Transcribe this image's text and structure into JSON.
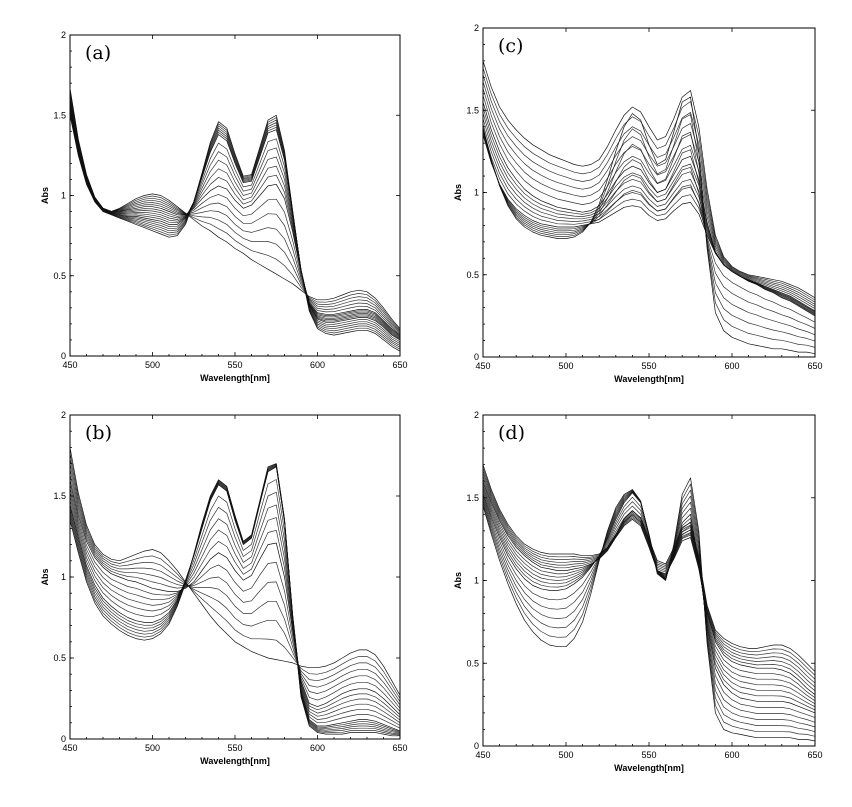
{
  "chart_data": [
    {
      "type": "line",
      "panel_label": "(a)",
      "xlabel": "Wavelength[nm]",
      "ylabel": "Abs",
      "xlim": [
        450,
        650
      ],
      "ylim": [
        0,
        2
      ],
      "xticks": [
        450,
        500,
        550,
        600,
        650
      ],
      "yticks": [
        0,
        0.5,
        1,
        1.5,
        2
      ],
      "grid": false,
      "x": [
        450,
        455,
        460,
        465,
        470,
        475,
        480,
        485,
        490,
        495,
        500,
        505,
        510,
        515,
        520,
        525,
        530,
        535,
        540,
        545,
        550,
        555,
        560,
        565,
        570,
        575,
        580,
        585,
        590,
        595,
        600,
        605,
        610,
        615,
        620,
        625,
        630,
        635,
        640,
        645,
        650
      ],
      "series": [
        {
          "values": [
            1.67,
            1.35,
            1.13,
            0.99,
            0.92,
            0.9,
            0.92,
            0.95,
            0.98,
            1.0,
            1.01,
            1.0,
            0.97,
            0.93,
            0.89,
            0.85,
            0.81,
            0.78,
            0.74,
            0.71,
            0.67,
            0.64,
            0.6,
            0.57,
            0.54,
            0.51,
            0.48,
            0.45,
            0.41,
            0.37,
            0.35,
            0.35,
            0.36,
            0.38,
            0.4,
            0.41,
            0.4,
            0.36,
            0.3,
            0.23,
            0.17
          ]
        },
        {
          "values": [
            1.6,
            1.31,
            1.11,
            0.98,
            0.92,
            0.9,
            0.9,
            0.91,
            0.92,
            0.93,
            0.93,
            0.92,
            0.9,
            0.88,
            0.88,
            0.92,
            0.98,
            1.03,
            1.06,
            1.04,
            0.97,
            0.92,
            0.94,
            1.0,
            1.06,
            1.07,
            0.98,
            0.77,
            0.52,
            0.33,
            0.27,
            0.26,
            0.26,
            0.27,
            0.28,
            0.29,
            0.29,
            0.27,
            0.22,
            0.17,
            0.13
          ]
        },
        {
          "values": [
            1.55,
            1.28,
            1.09,
            0.97,
            0.91,
            0.89,
            0.88,
            0.87,
            0.87,
            0.86,
            0.85,
            0.84,
            0.82,
            0.82,
            0.86,
            0.96,
            1.11,
            1.27,
            1.38,
            1.34,
            1.2,
            1.08,
            1.09,
            1.24,
            1.39,
            1.41,
            1.22,
            0.88,
            0.54,
            0.31,
            0.23,
            0.21,
            0.21,
            0.22,
            0.23,
            0.24,
            0.24,
            0.22,
            0.18,
            0.13,
            0.1
          ]
        },
        {
          "values": [
            1.5,
            1.25,
            1.07,
            0.96,
            0.9,
            0.88,
            0.86,
            0.84,
            0.82,
            0.8,
            0.78,
            0.76,
            0.74,
            0.75,
            0.82,
            0.96,
            1.14,
            1.33,
            1.46,
            1.42,
            1.26,
            1.12,
            1.13,
            1.3,
            1.47,
            1.5,
            1.28,
            0.9,
            0.53,
            0.28,
            0.17,
            0.14,
            0.13,
            0.14,
            0.15,
            0.16,
            0.16,
            0.14,
            0.1,
            0.06,
            0.03
          ]
        }
      ]
    },
    {
      "type": "line",
      "panel_label": "(b)",
      "xlabel": "Wavelength[nm]",
      "ylabel": "Abs",
      "xlim": [
        450,
        650
      ],
      "ylim": [
        0,
        2
      ],
      "xticks": [
        450,
        500,
        550,
        600,
        650
      ],
      "yticks": [
        0,
        0.5,
        1,
        1.5,
        2
      ],
      "grid": false,
      "x": [
        450,
        455,
        460,
        465,
        470,
        475,
        480,
        485,
        490,
        495,
        500,
        505,
        510,
        515,
        520,
        525,
        530,
        535,
        540,
        545,
        550,
        555,
        560,
        565,
        570,
        575,
        580,
        585,
        590,
        595,
        600,
        605,
        610,
        615,
        620,
        625,
        630,
        635,
        640,
        645,
        650
      ],
      "series": [
        {
          "values": [
            1.8,
            1.52,
            1.32,
            1.2,
            1.14,
            1.11,
            1.1,
            1.12,
            1.14,
            1.16,
            1.17,
            1.15,
            1.1,
            1.04,
            0.97,
            0.9,
            0.83,
            0.76,
            0.7,
            0.65,
            0.6,
            0.57,
            0.54,
            0.52,
            0.5,
            0.49,
            0.48,
            0.47,
            0.45,
            0.44,
            0.44,
            0.45,
            0.47,
            0.5,
            0.53,
            0.55,
            0.55,
            0.52,
            0.45,
            0.36,
            0.27
          ]
        },
        {
          "values": [
            1.6,
            1.38,
            1.22,
            1.12,
            1.06,
            1.02,
            1.0,
            0.98,
            0.97,
            0.95,
            0.93,
            0.92,
            0.91,
            0.91,
            0.93,
            0.97,
            1.04,
            1.11,
            1.15,
            1.12,
            1.04,
            0.98,
            1.01,
            1.11,
            1.2,
            1.21,
            1.0,
            0.66,
            0.36,
            0.22,
            0.2,
            0.22,
            0.25,
            0.28,
            0.3,
            0.31,
            0.31,
            0.29,
            0.25,
            0.2,
            0.15
          ]
        },
        {
          "values": [
            1.45,
            1.25,
            1.07,
            0.95,
            0.87,
            0.82,
            0.78,
            0.75,
            0.73,
            0.72,
            0.72,
            0.74,
            0.78,
            0.86,
            0.98,
            1.13,
            1.3,
            1.47,
            1.57,
            1.53,
            1.35,
            1.2,
            1.24,
            1.45,
            1.65,
            1.68,
            1.34,
            0.76,
            0.3,
            0.12,
            0.08,
            0.08,
            0.09,
            0.1,
            0.11,
            0.12,
            0.12,
            0.11,
            0.09,
            0.07,
            0.05
          ]
        },
        {
          "values": [
            1.35,
            1.15,
            0.97,
            0.84,
            0.76,
            0.71,
            0.67,
            0.64,
            0.62,
            0.61,
            0.62,
            0.65,
            0.71,
            0.82,
            0.96,
            1.14,
            1.33,
            1.5,
            1.6,
            1.56,
            1.38,
            1.22,
            1.26,
            1.47,
            1.68,
            1.7,
            1.36,
            0.74,
            0.26,
            0.08,
            0.04,
            0.03,
            0.03,
            0.03,
            0.04,
            0.04,
            0.04,
            0.04,
            0.03,
            0.02,
            0.02
          ]
        }
      ]
    },
    {
      "type": "line",
      "panel_label": "(c)",
      "xlabel": "Wavelength[nm]",
      "ylabel": "Abs",
      "xlim": [
        450,
        650
      ],
      "ylim": [
        0,
        2
      ],
      "xticks": [
        450,
        500,
        550,
        600,
        650
      ],
      "yticks": [
        0,
        0.5,
        1,
        1.5,
        2
      ],
      "grid": false,
      "x": [
        450,
        455,
        460,
        465,
        470,
        475,
        480,
        485,
        490,
        495,
        500,
        505,
        510,
        515,
        520,
        525,
        530,
        535,
        540,
        545,
        550,
        555,
        560,
        565,
        570,
        575,
        580,
        585,
        590,
        595,
        600,
        605,
        610,
        615,
        620,
        625,
        630,
        635,
        640,
        645,
        650
      ],
      "series": [
        {
          "values": [
            1.8,
            1.64,
            1.52,
            1.44,
            1.38,
            1.33,
            1.29,
            1.26,
            1.23,
            1.21,
            1.19,
            1.17,
            1.16,
            1.17,
            1.2,
            1.28,
            1.38,
            1.47,
            1.52,
            1.49,
            1.4,
            1.32,
            1.34,
            1.45,
            1.58,
            1.62,
            1.4,
            1.02,
            0.74,
            0.61,
            0.55,
            0.52,
            0.5,
            0.49,
            0.48,
            0.47,
            0.46,
            0.44,
            0.42,
            0.39,
            0.36
          ]
        },
        {
          "values": [
            1.55,
            1.38,
            1.25,
            1.15,
            1.08,
            1.02,
            0.98,
            0.95,
            0.93,
            0.91,
            0.9,
            0.89,
            0.88,
            0.89,
            0.92,
            0.99,
            1.07,
            1.13,
            1.16,
            1.14,
            1.06,
            1.0,
            1.02,
            1.11,
            1.2,
            1.22,
            1.08,
            0.82,
            0.64,
            0.56,
            0.52,
            0.49,
            0.47,
            0.45,
            0.43,
            0.41,
            0.39,
            0.37,
            0.34,
            0.31,
            0.28
          ]
        },
        {
          "values": [
            1.35,
            1.18,
            1.05,
            0.96,
            0.9,
            0.86,
            0.83,
            0.81,
            0.8,
            0.79,
            0.79,
            0.79,
            0.8,
            0.81,
            0.82,
            0.85,
            0.88,
            0.91,
            0.92,
            0.91,
            0.86,
            0.83,
            0.84,
            0.89,
            0.93,
            0.94,
            0.87,
            0.74,
            0.63,
            0.56,
            0.52,
            0.49,
            0.46,
            0.44,
            0.41,
            0.39,
            0.36,
            0.34,
            0.31,
            0.28,
            0.25
          ]
        },
        {
          "values": [
            1.4,
            1.2,
            1.04,
            0.92,
            0.84,
            0.79,
            0.76,
            0.74,
            0.73,
            0.72,
            0.72,
            0.73,
            0.76,
            0.82,
            0.93,
            1.08,
            1.25,
            1.4,
            1.48,
            1.44,
            1.29,
            1.17,
            1.2,
            1.37,
            1.55,
            1.58,
            1.25,
            0.66,
            0.27,
            0.16,
            0.12,
            0.1,
            0.08,
            0.07,
            0.06,
            0.05,
            0.05,
            0.04,
            0.03,
            0.03,
            0.02
          ]
        }
      ]
    },
    {
      "type": "line",
      "panel_label": "(d)",
      "xlabel": "Wavelength[nm]",
      "ylabel": "Abs",
      "xlim": [
        450,
        650
      ],
      "ylim": [
        0,
        2
      ],
      "xticks": [
        450,
        500,
        550,
        600,
        650
      ],
      "yticks": [
        0,
        0.5,
        1,
        1.5,
        2
      ],
      "grid": false,
      "x": [
        450,
        455,
        460,
        465,
        470,
        475,
        480,
        485,
        490,
        495,
        500,
        505,
        510,
        515,
        520,
        525,
        530,
        535,
        540,
        545,
        550,
        555,
        560,
        565,
        570,
        575,
        580,
        585,
        590,
        595,
        600,
        605,
        610,
        615,
        620,
        625,
        630,
        635,
        640,
        645,
        650
      ],
      "series": [
        {
          "values": [
            1.7,
            1.55,
            1.43,
            1.34,
            1.27,
            1.22,
            1.19,
            1.17,
            1.16,
            1.16,
            1.16,
            1.16,
            1.15,
            1.15,
            1.16,
            1.2,
            1.28,
            1.37,
            1.42,
            1.38,
            1.25,
            1.12,
            1.1,
            1.2,
            1.32,
            1.35,
            1.14,
            0.85,
            0.7,
            0.65,
            0.62,
            0.6,
            0.59,
            0.59,
            0.6,
            0.61,
            0.61,
            0.59,
            0.55,
            0.5,
            0.45
          ]
        },
        {
          "values": [
            1.6,
            1.47,
            1.36,
            1.27,
            1.2,
            1.15,
            1.11,
            1.08,
            1.07,
            1.06,
            1.06,
            1.07,
            1.08,
            1.1,
            1.13,
            1.18,
            1.26,
            1.33,
            1.37,
            1.33,
            1.2,
            1.06,
            1.04,
            1.13,
            1.24,
            1.26,
            1.07,
            0.8,
            0.63,
            0.55,
            0.51,
            0.49,
            0.48,
            0.47,
            0.47,
            0.47,
            0.46,
            0.44,
            0.4,
            0.35,
            0.31
          ]
        },
        {
          "values": [
            1.52,
            1.38,
            1.26,
            1.15,
            1.07,
            1.01,
            0.97,
            0.95,
            0.94,
            0.94,
            0.95,
            0.98,
            1.02,
            1.08,
            1.15,
            1.25,
            1.37,
            1.47,
            1.53,
            1.47,
            1.28,
            1.06,
            1.01,
            1.16,
            1.35,
            1.4,
            1.12,
            0.72,
            0.47,
            0.37,
            0.32,
            0.29,
            0.28,
            0.27,
            0.27,
            0.27,
            0.27,
            0.26,
            0.24,
            0.22,
            0.2
          ]
        },
        {
          "values": [
            1.45,
            1.28,
            1.12,
            0.98,
            0.86,
            0.76,
            0.69,
            0.64,
            0.61,
            0.6,
            0.6,
            0.65,
            0.75,
            0.92,
            1.12,
            1.3,
            1.44,
            1.52,
            1.55,
            1.48,
            1.27,
            1.04,
            1.0,
            1.22,
            1.52,
            1.62,
            1.3,
            0.62,
            0.2,
            0.1,
            0.08,
            0.07,
            0.06,
            0.05,
            0.05,
            0.05,
            0.05,
            0.05,
            0.04,
            0.04,
            0.03
          ]
        }
      ]
    }
  ]
}
